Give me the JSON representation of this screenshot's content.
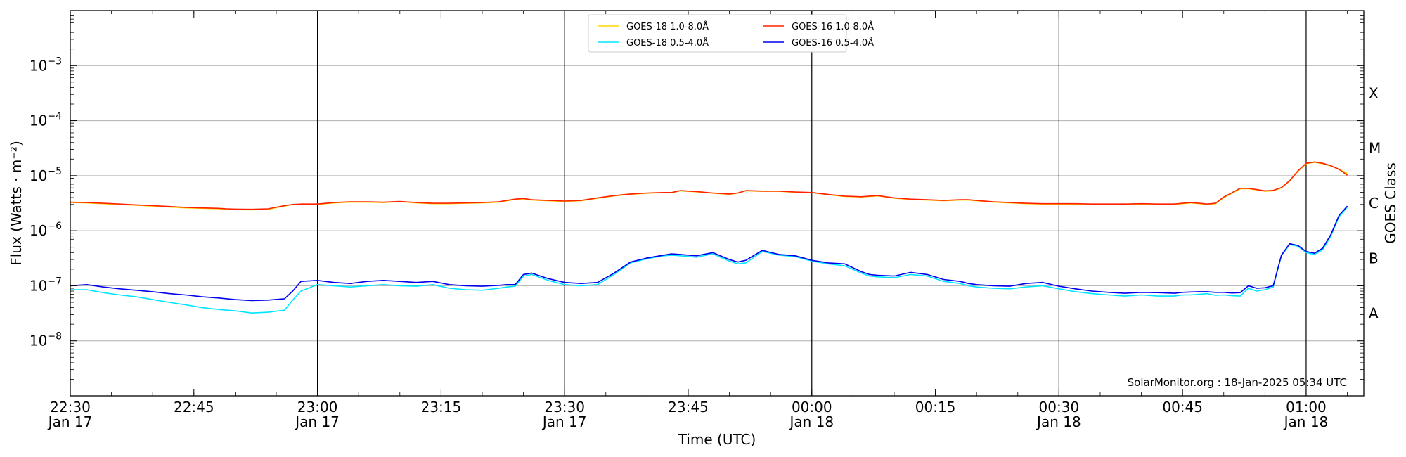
{
  "chart_data": {
    "type": "line",
    "xlabel": "Time (UTC)",
    "ylabel": "Flux (Watts · m⁻²)",
    "right_label": "GOES Class",
    "credit": "SolarMonitor.org : 18-Jan-2025 05:34 UTC",
    "y_scale": "log",
    "ylim": [
      1e-09,
      0.01
    ],
    "xlim": [
      "2025-01-17T22:30",
      "2025-01-18T01:07"
    ],
    "grid": "horizontal",
    "legend_position": "top-center",
    "y_ticks": [
      {
        "value": 1e-08,
        "base": "10",
        "exp": "−8"
      },
      {
        "value": 1e-07,
        "base": "10",
        "exp": "−7"
      },
      {
        "value": 1e-06,
        "base": "10",
        "exp": "−6"
      },
      {
        "value": 1e-05,
        "base": "10",
        "exp": "−5"
      },
      {
        "value": 0.0001,
        "base": "10",
        "exp": "−4"
      },
      {
        "value": 0.001,
        "base": "10",
        "exp": "−3"
      }
    ],
    "x_ticks": [
      {
        "time": "2025-01-17T22:30",
        "line1": "22:30",
        "line2": "Jan 17"
      },
      {
        "time": "2025-01-17T22:45",
        "line1": "22:45",
        "line2": ""
      },
      {
        "time": "2025-01-17T23:00",
        "line1": "23:00",
        "line2": "Jan 17"
      },
      {
        "time": "2025-01-17T23:15",
        "line1": "23:15",
        "line2": ""
      },
      {
        "time": "2025-01-17T23:30",
        "line1": "23:30",
        "line2": "Jan 17"
      },
      {
        "time": "2025-01-17T23:45",
        "line1": "23:45",
        "line2": ""
      },
      {
        "time": "2025-01-18T00:00",
        "line1": "00:00",
        "line2": "Jan 18"
      },
      {
        "time": "2025-01-18T00:15",
        "line1": "00:15",
        "line2": ""
      },
      {
        "time": "2025-01-18T00:30",
        "line1": "00:30",
        "line2": "Jan 18"
      },
      {
        "time": "2025-01-18T00:45",
        "line1": "00:45",
        "line2": ""
      },
      {
        "time": "2025-01-18T01:00",
        "line1": "01:00",
        "line2": "Jan 18"
      }
    ],
    "vertical_lines": [
      "2025-01-17T23:00",
      "2025-01-17T23:30",
      "2025-01-18T00:00",
      "2025-01-18T00:30",
      "2025-01-18T01:00"
    ],
    "class_labels": [
      {
        "label": "A",
        "min": 1e-08,
        "max": 1e-07
      },
      {
        "label": "B",
        "min": 1e-07,
        "max": 1e-06
      },
      {
        "label": "C",
        "min": 1e-06,
        "max": 1e-05
      },
      {
        "label": "M",
        "min": 1e-05,
        "max": 0.0001
      },
      {
        "label": "X",
        "min": 0.0001,
        "max": 0.001
      }
    ],
    "x": [
      "2025-01-17T22:30",
      "2025-01-17T22:32",
      "2025-01-17T22:34",
      "2025-01-17T22:36",
      "2025-01-17T22:38",
      "2025-01-17T22:40",
      "2025-01-17T22:42",
      "2025-01-17T22:44",
      "2025-01-17T22:46",
      "2025-01-17T22:48",
      "2025-01-17T22:49",
      "2025-01-17T22:50",
      "2025-01-17T22:52",
      "2025-01-17T22:54",
      "2025-01-17T22:56",
      "2025-01-17T22:57",
      "2025-01-17T22:58",
      "2025-01-17T23:00",
      "2025-01-17T23:02",
      "2025-01-17T23:04",
      "2025-01-17T23:06",
      "2025-01-17T23:08",
      "2025-01-17T23:10",
      "2025-01-17T23:12",
      "2025-01-17T23:14",
      "2025-01-17T23:16",
      "2025-01-17T23:18",
      "2025-01-17T23:20",
      "2025-01-17T23:22",
      "2025-01-17T23:23",
      "2025-01-17T23:24",
      "2025-01-17T23:25",
      "2025-01-17T23:26",
      "2025-01-17T23:28",
      "2025-01-17T23:30",
      "2025-01-17T23:32",
      "2025-01-17T23:34",
      "2025-01-17T23:36",
      "2025-01-17T23:38",
      "2025-01-17T23:40",
      "2025-01-17T23:42",
      "2025-01-17T23:43",
      "2025-01-17T23:44",
      "2025-01-17T23:46",
      "2025-01-17T23:48",
      "2025-01-17T23:50",
      "2025-01-17T23:51",
      "2025-01-17T23:52",
      "2025-01-17T23:54",
      "2025-01-17T23:56",
      "2025-01-17T23:58",
      "2025-01-18T00:00",
      "2025-01-18T00:02",
      "2025-01-18T00:04",
      "2025-01-18T00:06",
      "2025-01-18T00:07",
      "2025-01-18T00:08",
      "2025-01-18T00:10",
      "2025-01-18T00:12",
      "2025-01-18T00:14",
      "2025-01-18T00:16",
      "2025-01-18T00:18",
      "2025-01-18T00:19",
      "2025-01-18T00:20",
      "2025-01-18T00:22",
      "2025-01-18T00:24",
      "2025-01-18T00:26",
      "2025-01-18T00:28",
      "2025-01-18T00:30",
      "2025-01-18T00:32",
      "2025-01-18T00:34",
      "2025-01-18T00:36",
      "2025-01-18T00:38",
      "2025-01-18T00:40",
      "2025-01-18T00:42",
      "2025-01-18T00:44",
      "2025-01-18T00:45",
      "2025-01-18T00:46",
      "2025-01-18T00:47",
      "2025-01-18T00:48",
      "2025-01-18T00:49",
      "2025-01-18T00:50",
      "2025-01-18T00:51",
      "2025-01-18T00:52",
      "2025-01-18T00:53",
      "2025-01-18T00:54",
      "2025-01-18T00:55",
      "2025-01-18T00:56",
      "2025-01-18T00:57",
      "2025-01-18T00:58",
      "2025-01-18T00:59",
      "2025-01-18T01:00",
      "2025-01-18T01:01",
      "2025-01-18T01:02",
      "2025-01-18T01:03",
      "2025-01-18T01:04",
      "2025-01-18T01:05"
    ],
    "series": [
      {
        "name": "GOES-18 1.0-8.0Å",
        "color": "#ffd700",
        "values": [
          3.25e-06,
          3.2e-06,
          3.1e-06,
          3e-06,
          2.9e-06,
          2.8e-06,
          2.7e-06,
          2.6e-06,
          2.55e-06,
          2.5e-06,
          2.45e-06,
          2.42e-06,
          2.4e-06,
          2.45e-06,
          2.8e-06,
          3e-06,
          3e-06,
          3e-06,
          3.2e-06,
          3.3e-06,
          3.3e-06,
          3.25e-06,
          3.35e-06,
          3.2e-06,
          3.1e-06,
          3.1e-06,
          3.15e-06,
          3.2e-06,
          3.3e-06,
          3.5e-06,
          3.7e-06,
          3.8e-06,
          3.6e-06,
          3.5e-06,
          3.4e-06,
          3.5e-06,
          3.9e-06,
          4.3e-06,
          4.6e-06,
          4.8e-06,
          4.9e-06,
          4.9e-06,
          5.3e-06,
          5.1e-06,
          4.8e-06,
          4.6e-06,
          4.8e-06,
          5.3e-06,
          5.2e-06,
          5.2e-06,
          5e-06,
          4.9e-06,
          4.5e-06,
          4.2e-06,
          4.1e-06,
          4.2e-06,
          4.3e-06,
          3.9e-06,
          3.7e-06,
          3.6e-06,
          3.5e-06,
          3.6e-06,
          3.6e-06,
          3.5e-06,
          3.3e-06,
          3.2e-06,
          3.1e-06,
          3.05e-06,
          3.05e-06,
          3.05e-06,
          3e-06,
          3e-06,
          3e-06,
          3.05e-06,
          3e-06,
          3e-06,
          3.1e-06,
          3.2e-06,
          3.1e-06,
          3e-06,
          3.1e-06,
          4e-06,
          4.8e-06,
          5.8e-06,
          5.8e-06,
          5.5e-06,
          5.2e-06,
          5.3e-06,
          6e-06,
          8e-06,
          1.2e-05,
          1.65e-05,
          1.75e-05,
          1.65e-05,
          1.5e-05,
          1.3e-05,
          1.1e-05
        ]
      },
      {
        "name": "GOES-16 1.0-8.0Å",
        "color": "#ff2200",
        "values": [
          3.3e-06,
          3.25e-06,
          3.15e-06,
          3.05e-06,
          2.95e-06,
          2.85e-06,
          2.75e-06,
          2.65e-06,
          2.6e-06,
          2.55e-06,
          2.5e-06,
          2.47e-06,
          2.45e-06,
          2.5e-06,
          2.85e-06,
          3e-06,
          3.05e-06,
          3.05e-06,
          3.25e-06,
          3.35e-06,
          3.35e-06,
          3.3e-06,
          3.4e-06,
          3.25e-06,
          3.15e-06,
          3.15e-06,
          3.2e-06,
          3.25e-06,
          3.35e-06,
          3.55e-06,
          3.75e-06,
          3.85e-06,
          3.65e-06,
          3.55e-06,
          3.45e-06,
          3.55e-06,
          3.95e-06,
          4.35e-06,
          4.65e-06,
          4.85e-06,
          4.95e-06,
          4.95e-06,
          5.35e-06,
          5.15e-06,
          4.85e-06,
          4.65e-06,
          4.85e-06,
          5.35e-06,
          5.25e-06,
          5.25e-06,
          5.05e-06,
          4.95e-06,
          4.55e-06,
          4.25e-06,
          4.15e-06,
          4.25e-06,
          4.35e-06,
          3.95e-06,
          3.75e-06,
          3.65e-06,
          3.55e-06,
          3.65e-06,
          3.65e-06,
          3.55e-06,
          3.35e-06,
          3.25e-06,
          3.15e-06,
          3.1e-06,
          3.1e-06,
          3.1e-06,
          3.05e-06,
          3.05e-06,
          3.05e-06,
          3.1e-06,
          3.05e-06,
          3.05e-06,
          3.15e-06,
          3.25e-06,
          3.15e-06,
          3.05e-06,
          3.15e-06,
          4.1e-06,
          4.9e-06,
          5.9e-06,
          5.9e-06,
          5.6e-06,
          5.3e-06,
          5.4e-06,
          6.1e-06,
          8.1e-06,
          1.22e-05,
          1.68e-05,
          1.78e-05,
          1.68e-05,
          1.52e-05,
          1.3e-05,
          1.02e-05
        ]
      },
      {
        "name": "GOES-18 0.5-4.0Å",
        "color": "#00e5ff",
        "values": [
          8.5e-08,
          8.5e-08,
          7.5e-08,
          6.8e-08,
          6.3e-08,
          5.6e-08,
          5e-08,
          4.5e-08,
          4e-08,
          3.7e-08,
          3.6e-08,
          3.5e-08,
          3.2e-08,
          3.3e-08,
          3.6e-08,
          5.5e-08,
          8e-08,
          1.05e-07,
          1e-07,
          9.5e-08,
          1e-07,
          1.05e-07,
          1e-07,
          9.8e-08,
          1.05e-07,
          9e-08,
          8.5e-08,
          8.3e-08,
          9e-08,
          9.5e-08,
          9.8e-08,
          1.5e-07,
          1.6e-07,
          1.25e-07,
          1.05e-07,
          1e-07,
          1.05e-07,
          1.6e-07,
          2.6e-07,
          3.1e-07,
          3.5e-07,
          3.6e-07,
          3.5e-07,
          3.3e-07,
          3.8e-07,
          2.8e-07,
          2.5e-07,
          2.6e-07,
          4.2e-07,
          3.6e-07,
          3.4e-07,
          2.8e-07,
          2.5e-07,
          2.3e-07,
          1.7e-07,
          1.5e-07,
          1.45e-07,
          1.4e-07,
          1.6e-07,
          1.5e-07,
          1.2e-07,
          1.1e-07,
          1e-07,
          9.5e-08,
          9e-08,
          8.8e-08,
          9.5e-08,
          1e-07,
          8.8e-08,
          7.8e-08,
          7.2e-08,
          6.8e-08,
          6.5e-08,
          6.8e-08,
          6.5e-08,
          6.5e-08,
          6.8e-08,
          6.8e-08,
          7e-08,
          7.2e-08,
          6.7e-08,
          6.8e-08,
          6.6e-08,
          6.5e-08,
          9e-08,
          8e-08,
          8.5e-08,
          9.5e-08,
          3.5e-07,
          5.6e-07,
          5.2e-07,
          4e-07,
          3.7e-07,
          4.5e-07,
          8e-07,
          1.8e-06,
          2.7e-06
        ]
      },
      {
        "name": "GOES-16 0.5-4.0Å",
        "color": "#0000ee",
        "values": [
          1e-07,
          1.05e-07,
          9.5e-08,
          8.8e-08,
          8.3e-08,
          7.8e-08,
          7.2e-08,
          6.8e-08,
          6.3e-08,
          6e-08,
          5.8e-08,
          5.6e-08,
          5.4e-08,
          5.5e-08,
          5.8e-08,
          8e-08,
          1.2e-07,
          1.25e-07,
          1.15e-07,
          1.1e-07,
          1.2e-07,
          1.25e-07,
          1.2e-07,
          1.15e-07,
          1.2e-07,
          1.05e-07,
          1e-07,
          9.8e-08,
          1.02e-07,
          1.05e-07,
          1.05e-07,
          1.6e-07,
          1.7e-07,
          1.35e-07,
          1.15e-07,
          1.1e-07,
          1.15e-07,
          1.7e-07,
          2.7e-07,
          3.2e-07,
          3.6e-07,
          3.8e-07,
          3.7e-07,
          3.5e-07,
          4e-07,
          3e-07,
          2.7e-07,
          2.9e-07,
          4.4e-07,
          3.7e-07,
          3.5e-07,
          2.9e-07,
          2.6e-07,
          2.5e-07,
          1.8e-07,
          1.6e-07,
          1.55e-07,
          1.5e-07,
          1.75e-07,
          1.6e-07,
          1.3e-07,
          1.2e-07,
          1.1e-07,
          1.05e-07,
          1e-07,
          9.8e-08,
          1.1e-07,
          1.15e-07,
          9.8e-08,
          8.8e-08,
          8e-08,
          7.6e-08,
          7.3e-08,
          7.6e-08,
          7.5e-08,
          7.3e-08,
          7.6e-08,
          7.7e-08,
          7.8e-08,
          7.8e-08,
          7.6e-08,
          7.6e-08,
          7.4e-08,
          7.5e-08,
          1e-07,
          9e-08,
          9.2e-08,
          1e-07,
          3.6e-07,
          5.8e-07,
          5.4e-07,
          4.2e-07,
          3.9e-07,
          4.8e-07,
          8.5e-07,
          1.9e-06,
          2.8e-06
        ]
      }
    ],
    "legend_order": [
      0,
      2,
      1,
      3
    ]
  }
}
